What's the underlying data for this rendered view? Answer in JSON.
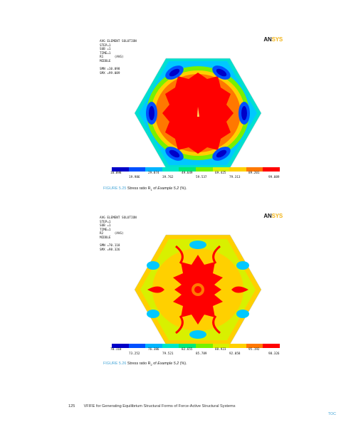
{
  "figures": [
    {
      "legend": {
        "line1": "AVG ELEMENT SOLUTION",
        "line2": "STEP=1",
        "line3": "SUB =1",
        "line4": "TIME=1",
        "line5": "R1      (AVG)",
        "line6": "MIDDLE",
        "smn": "SMN =10.098",
        "smx": "SMX =99.089"
      },
      "logo": {
        "an": "AN",
        "sys": "SYS"
      },
      "scale_top": [
        "10.098",
        "29.874",
        "49.649",
        "69.425",
        "89.201"
      ],
      "scale_bottom": [
        "19.986",
        "39.762",
        "59.537",
        "79.313",
        "99.089"
      ],
      "caption": {
        "label": "FIGURE 5.25",
        "text": "Stress ratio R",
        "sub": "1",
        "text2": " of ",
        "example": "Example 5.2",
        "tail": " (%)."
      }
    },
    {
      "legend": {
        "line1": "AVG ELEMENT SOLUTION",
        "line2": "STEP=1",
        "line3": "SUB =1",
        "line4": "TIME=1",
        "line5": "R2      (AVG)",
        "line6": "MIDDLE",
        "smn": "SMN =70.118",
        "smx": "SMX =98.326"
      },
      "logo": {
        "an": "AN",
        "sys": "SYS"
      },
      "scale_top": [
        "70.118",
        "76.386",
        "82.655",
        "88.923",
        "95.192"
      ],
      "scale_bottom": [
        "73.252",
        "79.521",
        "85.789",
        "92.058",
        "98.326"
      ],
      "caption": {
        "label": "FIGURE 5.26",
        "text": "Stress ratio R",
        "sub": "2",
        "text2": " of ",
        "example": "Example 5.2",
        "tail": " (%)."
      }
    }
  ],
  "scale_colors": [
    "#0000c8",
    "#0050ff",
    "#00b4ff",
    "#00e6c8",
    "#00e878",
    "#78f000",
    "#d8f000",
    "#ffd000",
    "#ff7800",
    "#ff0000"
  ],
  "footer": {
    "page": "125",
    "title": "VFIFE for Generating Equilibrium Structural Forms of Force-Active Structural Systems"
  },
  "toc": {
    "label": "TOC"
  }
}
